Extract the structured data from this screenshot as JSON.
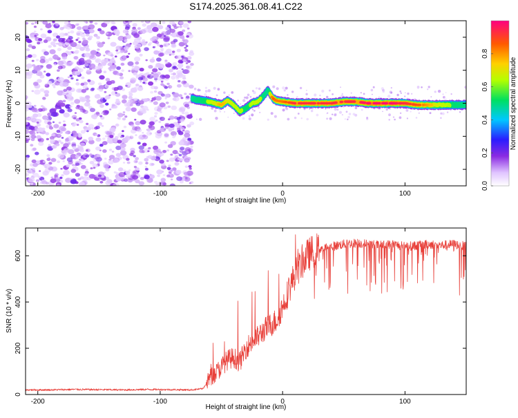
{
  "title": "S174.2025.361.08.41.C22",
  "chart_data": [
    {
      "type": "heatmap",
      "name": "spectrogram",
      "xlabel": "Height of straight line (km)",
      "ylabel": "Frequency (Hz)",
      "xlim": [
        -210,
        150
      ],
      "ylim": [
        -25,
        25
      ],
      "xticks": [
        -200,
        -100,
        0,
        100
      ],
      "yticks": [
        -20,
        -10,
        0,
        10,
        20
      ],
      "colorbar": {
        "label": "Normalized spectral amplitude",
        "range": [
          0,
          1
        ],
        "ticks": [
          0.0,
          0.2,
          0.4,
          0.6,
          0.8
        ],
        "tick_labels": [
          "0.0",
          "0.2",
          "0.4",
          "0.6",
          "0.8"
        ]
      },
      "noise_region_x": [
        -210,
        -74
      ],
      "ridge_x": [
        -74,
        -70,
        -65,
        -60,
        -55,
        -50,
        -45,
        -40,
        -35,
        -30,
        -25,
        -20,
        -15,
        -12,
        -8,
        -5,
        0,
        10,
        20,
        30,
        40,
        50,
        60,
        70,
        80,
        90,
        100,
        110,
        120,
        130,
        140,
        150
      ],
      "ridge_freq": [
        1.5,
        1.0,
        0.8,
        0.5,
        0.0,
        -0.5,
        0.8,
        -0.5,
        -2.5,
        -1.5,
        0.0,
        0.5,
        2.5,
        4.0,
        1.5,
        0.8,
        0.5,
        0.0,
        0.0,
        0.0,
        0.0,
        0.5,
        0.5,
        0.0,
        0.0,
        0.0,
        0.0,
        -0.5,
        -0.5,
        -0.5,
        -0.5,
        -0.5
      ],
      "ridge_amp": [
        0.45,
        0.5,
        0.55,
        0.6,
        0.7,
        0.75,
        0.7,
        0.65,
        0.6,
        0.55,
        0.6,
        0.65,
        0.5,
        0.45,
        0.85,
        0.8,
        0.8,
        0.9,
        0.9,
        0.9,
        0.9,
        0.9,
        0.9,
        0.95,
        0.95,
        0.95,
        0.9,
        0.85,
        0.75,
        0.65,
        0.55,
        0.5
      ]
    },
    {
      "type": "line",
      "name": "snr",
      "xlabel": "Height of straight line (km)",
      "ylabel": "SNR (10 * v/v)",
      "xlim": [
        -210,
        150
      ],
      "ylim": [
        0,
        720
      ],
      "xticks": [
        -200,
        -100,
        0,
        100
      ],
      "yticks": [
        0,
        200,
        400,
        600
      ],
      "color": "#e8403a",
      "series": [
        {
          "name": "SNR",
          "x": [
            -210,
            -190,
            -170,
            -150,
            -130,
            -110,
            -90,
            -75,
            -65,
            -60,
            -55,
            -50,
            -45,
            -40,
            -35,
            -30,
            -25,
            -20,
            -15,
            -10,
            -5,
            0,
            5,
            10,
            15,
            20,
            25,
            30,
            40,
            50,
            60,
            70,
            80,
            90,
            100,
            110,
            120,
            130,
            140,
            150
          ],
          "y": [
            20,
            20,
            22,
            21,
            20,
            22,
            21,
            20,
            25,
            70,
            90,
            120,
            150,
            160,
            140,
            200,
            230,
            250,
            280,
            300,
            320,
            380,
            450,
            520,
            560,
            600,
            620,
            630,
            640,
            650,
            655,
            650,
            645,
            650,
            640,
            645,
            650,
            645,
            650,
            640
          ]
        }
      ]
    }
  ]
}
